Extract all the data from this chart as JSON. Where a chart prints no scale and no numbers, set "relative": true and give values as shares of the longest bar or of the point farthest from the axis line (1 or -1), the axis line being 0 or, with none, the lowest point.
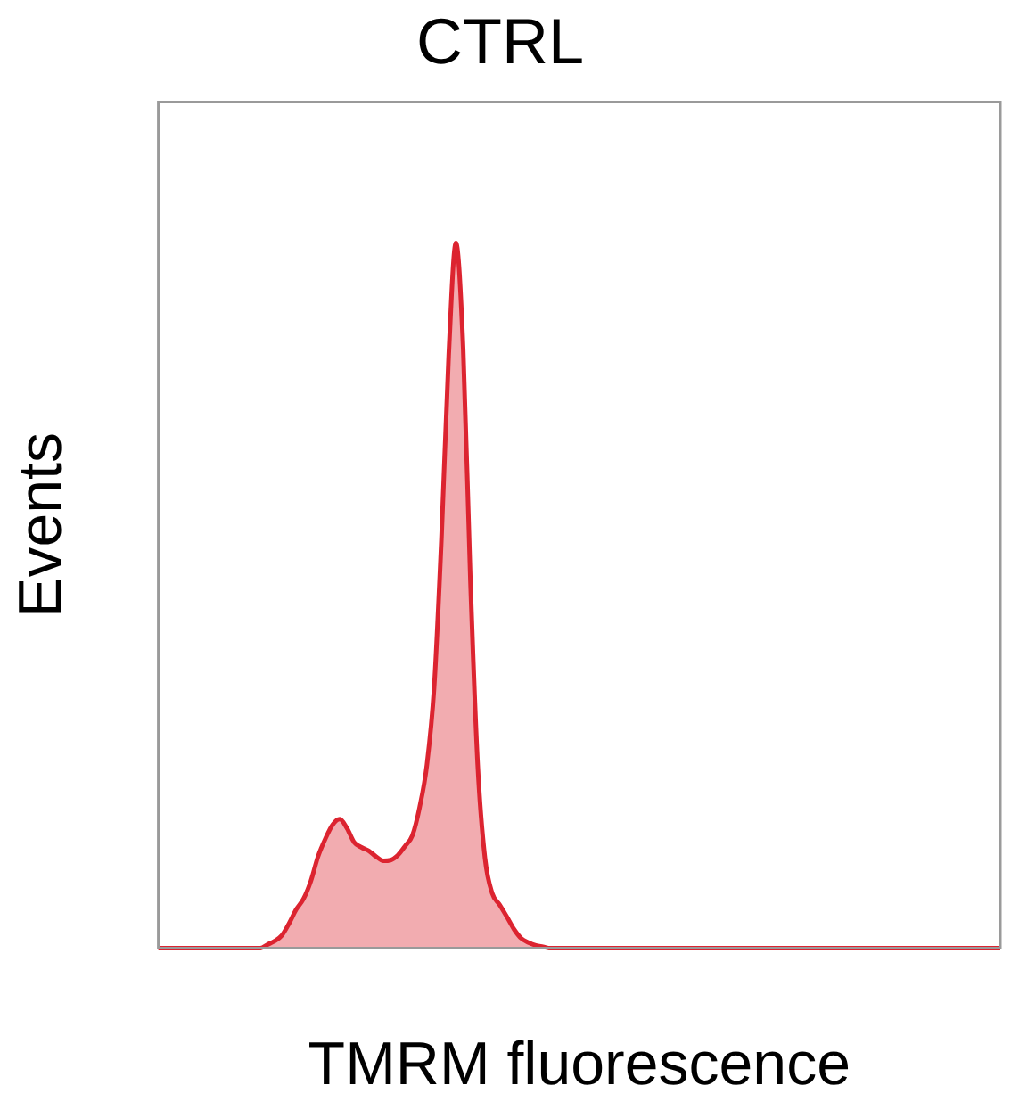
{
  "chart_data": {
    "type": "area",
    "title": "CTRL",
    "xlabel": "TMRM fluorescence",
    "ylabel": "Events",
    "relative": true,
    "legend": false,
    "grid": false,
    "marker": "none",
    "categories": [
      null,
      null,
      null,
      null,
      null,
      null,
      null,
      null,
      null,
      null,
      null,
      null,
      null,
      null,
      null,
      null,
      null,
      null,
      null,
      null,
      null,
      null,
      null,
      null,
      null,
      null,
      null,
      null,
      null,
      null,
      null,
      null,
      null,
      null,
      null,
      null,
      null,
      null,
      null,
      null,
      null,
      null,
      null,
      null,
      null,
      null,
      null,
      null,
      null,
      null,
      null,
      null,
      null,
      null,
      null,
      null,
      null,
      null,
      null,
      null,
      null,
      null,
      null,
      null,
      null,
      null,
      null,
      null,
      null,
      null,
      null,
      null,
      null,
      null,
      null,
      null,
      null,
      null,
      null,
      null,
      null,
      null,
      null,
      null,
      null,
      null,
      null,
      null,
      null,
      null,
      null,
      null,
      null,
      null,
      null,
      null,
      null,
      null,
      null,
      null,
      null,
      null,
      null,
      null,
      null,
      null,
      null,
      null,
      null,
      null,
      null,
      null,
      null,
      null,
      null,
      null,
      null
    ],
    "series": [
      {
        "color": "#dc2430",
        "values": [
          0,
          0,
          0,
          0,
          0,
          0,
          0,
          0,
          0,
          0,
          0,
          0,
          0,
          0,
          0,
          0.005,
          0.01,
          0.018,
          0.035,
          0.055,
          0.07,
          0.095,
          0.13,
          0.155,
          0.175,
          0.183,
          0.17,
          0.15,
          0.143,
          0.138,
          0.13,
          0.124,
          0.125,
          0.132,
          0.145,
          0.16,
          0.2,
          0.26,
          0.37,
          0.58,
          0.84,
          1,
          0.85,
          0.52,
          0.26,
          0.128,
          0.078,
          0.062,
          0.045,
          0.027,
          0.014,
          0.008,
          0.004,
          0.002,
          0,
          0,
          0,
          0,
          0,
          0,
          0,
          0,
          0,
          0,
          0,
          0,
          0,
          0,
          0,
          0,
          0,
          0,
          0,
          0,
          0,
          0,
          0,
          0,
          0,
          0,
          0,
          0,
          0,
          0,
          0,
          0,
          0,
          0,
          0,
          0,
          0,
          0,
          0,
          0,
          0,
          0,
          0,
          0,
          0,
          0,
          0,
          0,
          0,
          0,
          0,
          0,
          0,
          0,
          0,
          0,
          0,
          0,
          0,
          0,
          0,
          0,
          0
        ]
      }
    ]
  }
}
